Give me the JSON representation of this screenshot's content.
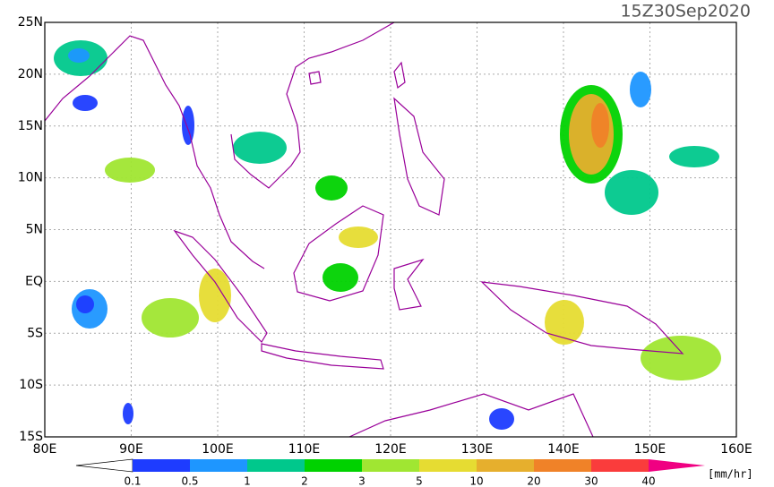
{
  "title": "15Z30Sep2020",
  "map": {
    "lonlim": [
      80,
      160
    ],
    "latlim": [
      -15,
      25
    ],
    "lat_ticks": [
      {
        "value": 25,
        "label": "25N"
      },
      {
        "value": 20,
        "label": "20N"
      },
      {
        "value": 15,
        "label": "15N"
      },
      {
        "value": 10,
        "label": "10N"
      },
      {
        "value": 5,
        "label": "5N"
      },
      {
        "value": 0,
        "label": "EQ"
      },
      {
        "value": -5,
        "label": "5S"
      },
      {
        "value": -10,
        "label": "10S"
      },
      {
        "value": -15,
        "label": "15S"
      }
    ],
    "lon_ticks": [
      {
        "value": 80,
        "label": "80E"
      },
      {
        "value": 90,
        "label": "90E"
      },
      {
        "value": 100,
        "label": "100E"
      },
      {
        "value": 110,
        "label": "110E"
      },
      {
        "value": 120,
        "label": "120E"
      },
      {
        "value": 130,
        "label": "130E"
      },
      {
        "value": 140,
        "label": "140E"
      },
      {
        "value": 150,
        "label": "150E"
      },
      {
        "value": 160,
        "label": "160E"
      }
    ]
  },
  "colorbar": {
    "levels": [
      0.1,
      0.5,
      1,
      2,
      3,
      5,
      10,
      20,
      30,
      40
    ],
    "colors": [
      "#ffffff",
      "#1e3cff",
      "#1e96ff",
      "#00c88c",
      "#00d200",
      "#a0e632",
      "#e6dc32",
      "#e6af2d",
      "#f08228",
      "#fa3c3c",
      "#f00082"
    ],
    "unit": "[mm/hr]"
  }
}
